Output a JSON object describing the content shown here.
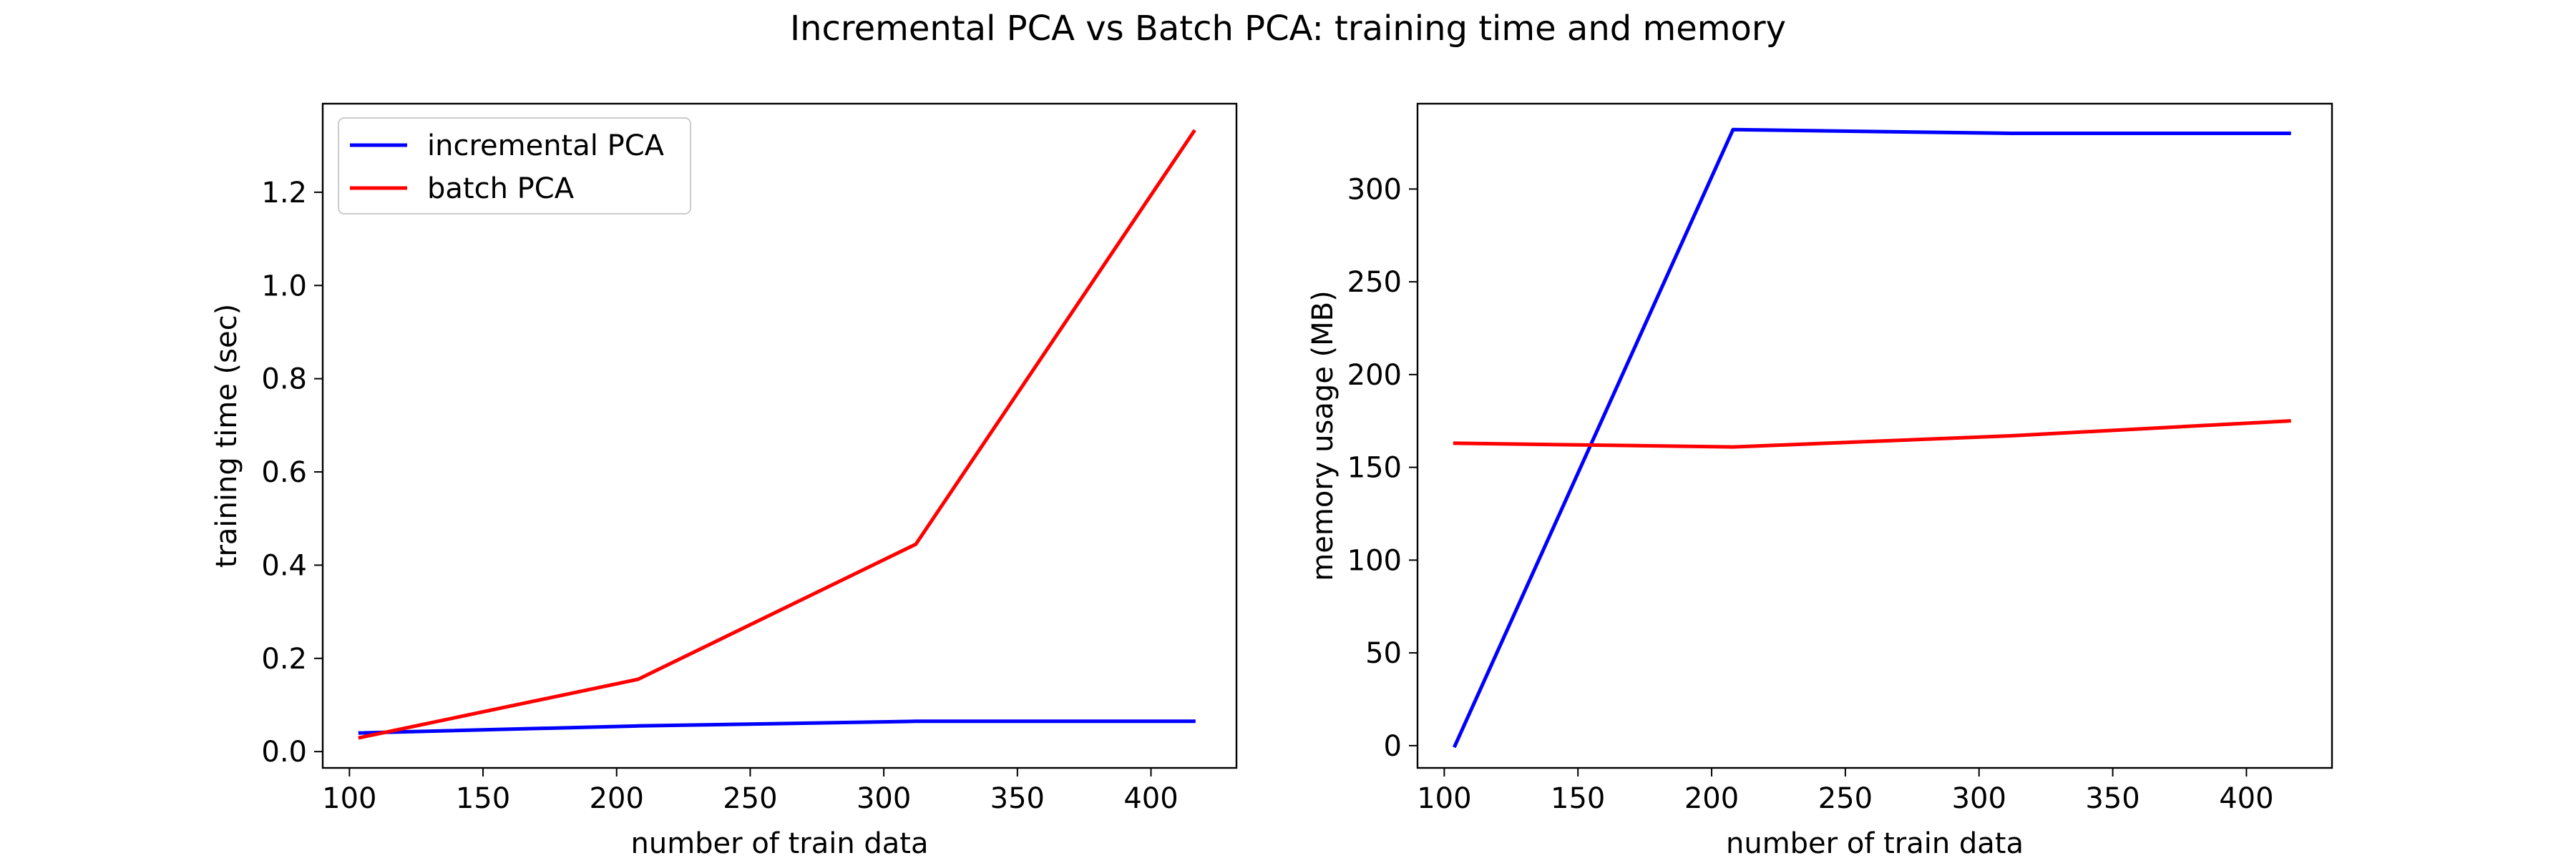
{
  "figure": {
    "title": "Incremental PCA vs Batch PCA: training time and memory"
  },
  "chart_data": [
    {
      "type": "line",
      "title": "",
      "xlabel": "number of train data",
      "ylabel": "training time (sec)",
      "xlim": [
        90,
        432
      ],
      "ylim": [
        -0.035,
        1.39
      ],
      "xticks": [
        100,
        150,
        200,
        250,
        300,
        350,
        400
      ],
      "yticks": [
        0.0,
        0.2,
        0.4,
        0.6,
        0.8,
        1.0,
        1.2
      ],
      "ytick_decimals": 1,
      "grid": false,
      "legend": "top-left",
      "x": [
        104,
        208,
        312,
        416
      ],
      "series": [
        {
          "name": "incremental PCA",
          "color": "#0000ff",
          "values": [
            0.04,
            0.055,
            0.065,
            0.065
          ]
        },
        {
          "name": "batch PCA",
          "color": "#ff0000",
          "values": [
            0.03,
            0.155,
            0.445,
            1.33
          ]
        }
      ]
    },
    {
      "type": "line",
      "title": "",
      "xlabel": "number of train data",
      "ylabel": "memory usage (MB)",
      "xlim": [
        90,
        432
      ],
      "ylim": [
        -12,
        346
      ],
      "xticks": [
        100,
        150,
        200,
        250,
        300,
        350,
        400
      ],
      "yticks": [
        0,
        50,
        100,
        150,
        200,
        250,
        300
      ],
      "ytick_decimals": 0,
      "grid": false,
      "legend": "none",
      "x": [
        104,
        208,
        312,
        416
      ],
      "series": [
        {
          "color": "#0000ff",
          "values": [
            0,
            332,
            330,
            330
          ]
        },
        {
          "color": "#ff0000",
          "values": [
            163,
            161,
            167,
            175
          ]
        }
      ]
    }
  ]
}
